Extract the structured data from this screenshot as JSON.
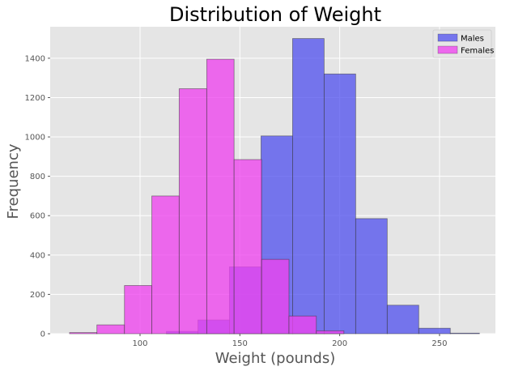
{
  "chart_data": {
    "type": "histogram",
    "title": "Distribution of Weight",
    "xlabel": "Weight (pounds)",
    "ylabel": "Frequency",
    "xlim": [
      55,
      278
    ],
    "ylim": [
      0,
      1560
    ],
    "xticks": [
      100,
      150,
      200,
      250
    ],
    "yticks": [
      0,
      200,
      400,
      600,
      800,
      1000,
      1200,
      1400
    ],
    "grid": true,
    "legend_position": "top-right",
    "series": [
      {
        "name": "Males",
        "color": "#5555ee",
        "bins": [
          {
            "x0": 113.2,
            "x1": 129.0,
            "count": 12
          },
          {
            "x0": 129.0,
            "x1": 144.8,
            "count": 70
          },
          {
            "x0": 144.8,
            "x1": 160.6,
            "count": 340
          },
          {
            "x0": 160.6,
            "x1": 176.4,
            "count": 1005
          },
          {
            "x0": 176.4,
            "x1": 192.2,
            "count": 1500
          },
          {
            "x0": 192.2,
            "x1": 208.0,
            "count": 1320
          },
          {
            "x0": 208.0,
            "x1": 223.8,
            "count": 585
          },
          {
            "x0": 223.8,
            "x1": 239.6,
            "count": 145
          },
          {
            "x0": 239.6,
            "x1": 255.4,
            "count": 28
          },
          {
            "x0": 255.4,
            "x1": 270.0,
            "count": 3
          }
        ]
      },
      {
        "name": "Females",
        "color": "#ee44ee",
        "bins": [
          {
            "x0": 64.7,
            "x1": 78.4,
            "count": 6
          },
          {
            "x0": 78.4,
            "x1": 92.2,
            "count": 45
          },
          {
            "x0": 92.2,
            "x1": 105.9,
            "count": 245
          },
          {
            "x0": 105.9,
            "x1": 119.6,
            "count": 700
          },
          {
            "x0": 119.6,
            "x1": 133.4,
            "count": 1245
          },
          {
            "x0": 133.4,
            "x1": 147.1,
            "count": 1395
          },
          {
            "x0": 147.1,
            "x1": 160.9,
            "count": 885
          },
          {
            "x0": 160.9,
            "x1": 174.6,
            "count": 378
          },
          {
            "x0": 174.6,
            "x1": 188.3,
            "count": 90
          },
          {
            "x0": 188.3,
            "x1": 202.1,
            "count": 15
          }
        ]
      }
    ]
  }
}
